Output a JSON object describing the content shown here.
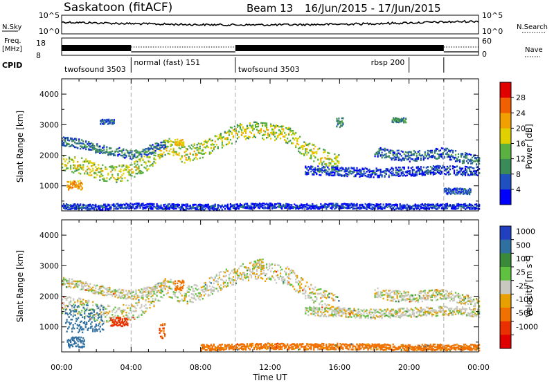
{
  "header": {
    "station": "Saskatoon (fitACF)",
    "beam": "Beam 13",
    "dates": "16/Jun/2015 - 17/Jun/2015"
  },
  "top_panels": {
    "nsky_label": "N.Sky",
    "nsky_ticks": [
      "10^5",
      "10^0"
    ],
    "nsearch_label": "N.Search",
    "nsearch_ticks": [
      "10^5",
      "10^0"
    ],
    "freq_label_line1": "Freq.",
    "freq_label_line2": "[MHz]",
    "freq_ticks": [
      "18",
      "8"
    ],
    "nave_label": "Nave",
    "nave_ticks": [
      "60",
      "0"
    ],
    "cpid_label": "CPID",
    "cpid_segments": [
      {
        "label": "twofsound 3503",
        "start": 0,
        "end": 4
      },
      {
        "label": "normal (fast) 151",
        "start": 4,
        "end": 10
      },
      {
        "label": "twofsound 3503",
        "start": 10,
        "end": 20
      },
      {
        "label": "rbsp 200",
        "start": 20,
        "end": 22
      },
      {
        "label": "",
        "start": 22,
        "end": 24
      }
    ]
  },
  "colors": {
    "power_scale": [
      "#0000ff",
      "#2050c0",
      "#3a8a5a",
      "#5ab040",
      "#e0d000",
      "#f0a000",
      "#f06000",
      "#e00000"
    ],
    "velocity_scale": [
      "#2040c0",
      "#3070a0",
      "#3a8a3a",
      "#60c040",
      "#c8c8c0",
      "#e8a000",
      "#f07000",
      "#e83000",
      "#e00000"
    ],
    "divider": "#aaaaaa"
  },
  "chart_data": [
    {
      "type": "heatmap",
      "name": "power",
      "xlabel": "",
      "ylabel": "Slant Range [km]",
      "xlim": [
        0,
        24
      ],
      "ylim": [
        180,
        4500
      ],
      "yticks": [
        "1000",
        "2000",
        "3000",
        "4000"
      ],
      "colorbar_label": "Power [dB]",
      "colorbar_ticks": [
        "4",
        "8",
        "12",
        "16",
        "20",
        "24",
        "28"
      ],
      "mode_change_hours": [
        4,
        10,
        22
      ],
      "bands": [
        {
          "x": [
            0,
            1,
            2,
            3,
            4,
            5,
            6,
            7,
            8,
            9,
            10,
            11,
            12,
            13,
            14,
            15,
            16
          ],
          "y": [
            1700,
            1650,
            1450,
            1350,
            1450,
            1800,
            2300,
            2000,
            2150,
            2450,
            2700,
            2800,
            2750,
            2650,
            2200,
            1900,
            1700
          ],
          "width": 550,
          "level": 18
        },
        {
          "x": [
            0,
            1,
            2,
            3,
            4,
            5,
            6
          ],
          "y": [
            2450,
            2350,
            2200,
            2100,
            2000,
            2150,
            2350
          ],
          "width": 300,
          "level": 10
        },
        {
          "x": [
            14,
            16,
            18,
            20,
            22,
            24
          ],
          "y": [
            1500,
            1450,
            1400,
            1450,
            1500,
            1450
          ],
          "width": 300,
          "level": 7
        },
        {
          "x": [
            18,
            19,
            20,
            21,
            22,
            23,
            24
          ],
          "y": [
            2100,
            2000,
            1950,
            2000,
            2050,
            1900,
            1800
          ],
          "width": 350,
          "level": 9
        },
        {
          "x": [
            0,
            2,
            4,
            6,
            8,
            10,
            12,
            14,
            16,
            18,
            20,
            22,
            24
          ],
          "y": [
            300,
            280,
            320,
            300,
            280,
            300,
            330,
            300,
            320,
            300,
            290,
            310,
            300
          ],
          "width": 180,
          "level": 6
        }
      ],
      "patches": [
        {
          "x0": 0.3,
          "x1": 1.2,
          "y0": 850,
          "y1": 1150,
          "level": 22
        },
        {
          "x0": 6.5,
          "x1": 7.0,
          "y0": 2300,
          "y1": 2500,
          "level": 20
        },
        {
          "x0": 2.2,
          "x1": 3.0,
          "y0": 3000,
          "y1": 3150,
          "level": 6
        },
        {
          "x0": 15.8,
          "x1": 16.2,
          "y0": 2900,
          "y1": 3200,
          "level": 10
        },
        {
          "x0": 19.0,
          "x1": 19.8,
          "y0": 3050,
          "y1": 3200,
          "level": 10
        },
        {
          "x0": 22.0,
          "x1": 23.5,
          "y0": 700,
          "y1": 900,
          "level": 6
        }
      ]
    },
    {
      "type": "heatmap",
      "name": "velocity",
      "xlabel": "Time UT",
      "ylabel": "Slant Range [km]",
      "xlim": [
        0,
        24
      ],
      "ylim": [
        180,
        4500
      ],
      "xticks": [
        "00:00",
        "04:00",
        "08:00",
        "12:00",
        "16:00",
        "20:00",
        "00:00"
      ],
      "yticks": [
        "1000",
        "2000",
        "3000",
        "4000"
      ],
      "colorbar_label": "Velocity [m s^-1]",
      "colorbar_ticks": [
        "1000",
        "500",
        "100",
        "25",
        "-25",
        "-100",
        "-500",
        "-1000"
      ],
      "mode_change_hours": [
        4,
        10,
        22
      ],
      "bands": [
        {
          "x": [
            0,
            1,
            2,
            3,
            4,
            5,
            6,
            7,
            8,
            9,
            10,
            11,
            12,
            13,
            14,
            15,
            16
          ],
          "y": [
            1700,
            1650,
            1450,
            1350,
            1450,
            1800,
            2300,
            2000,
            2150,
            2450,
            2700,
            2800,
            2750,
            2650,
            2200,
            1900,
            1700
          ],
          "width": 600,
          "velocity": 0
        },
        {
          "x": [
            0,
            1,
            2,
            3,
            4,
            5,
            6
          ],
          "y": [
            2450,
            2350,
            2200,
            2100,
            2000,
            2150,
            2350
          ],
          "width": 300,
          "velocity": 0
        },
        {
          "x": [
            14,
            16,
            18,
            20,
            22,
            24
          ],
          "y": [
            1500,
            1450,
            1400,
            1450,
            1500,
            1450
          ],
          "width": 300,
          "velocity": 0
        },
        {
          "x": [
            18,
            19,
            20,
            21,
            22,
            23,
            24
          ],
          "y": [
            2100,
            2000,
            1950,
            2000,
            2050,
            1900,
            1800
          ],
          "width": 350,
          "velocity": 0
        },
        {
          "x": [
            8,
            10,
            12,
            14,
            16,
            18,
            20,
            22,
            24
          ],
          "y": [
            300,
            320,
            350,
            330,
            340,
            320,
            300,
            310,
            300
          ],
          "width": 200,
          "velocity": -80
        }
      ],
      "patches": [
        {
          "x0": 0.2,
          "x1": 2.4,
          "y0": 800,
          "y1": 1700,
          "velocity": 400
        },
        {
          "x0": 0.3,
          "x1": 1.3,
          "y0": 300,
          "y1": 650,
          "velocity": 400
        },
        {
          "x0": 2.8,
          "x1": 3.8,
          "y0": 1000,
          "y1": 1300,
          "velocity": -400
        },
        {
          "x0": 6.5,
          "x1": 7.0,
          "y0": 2150,
          "y1": 2500,
          "velocity": -150
        },
        {
          "x0": 5.6,
          "x1": 5.9,
          "y0": 600,
          "y1": 1150,
          "velocity": -300
        },
        {
          "x0": 11.0,
          "x1": 11.6,
          "y0": 2900,
          "y1": 3200,
          "velocity": 0
        }
      ]
    }
  ]
}
